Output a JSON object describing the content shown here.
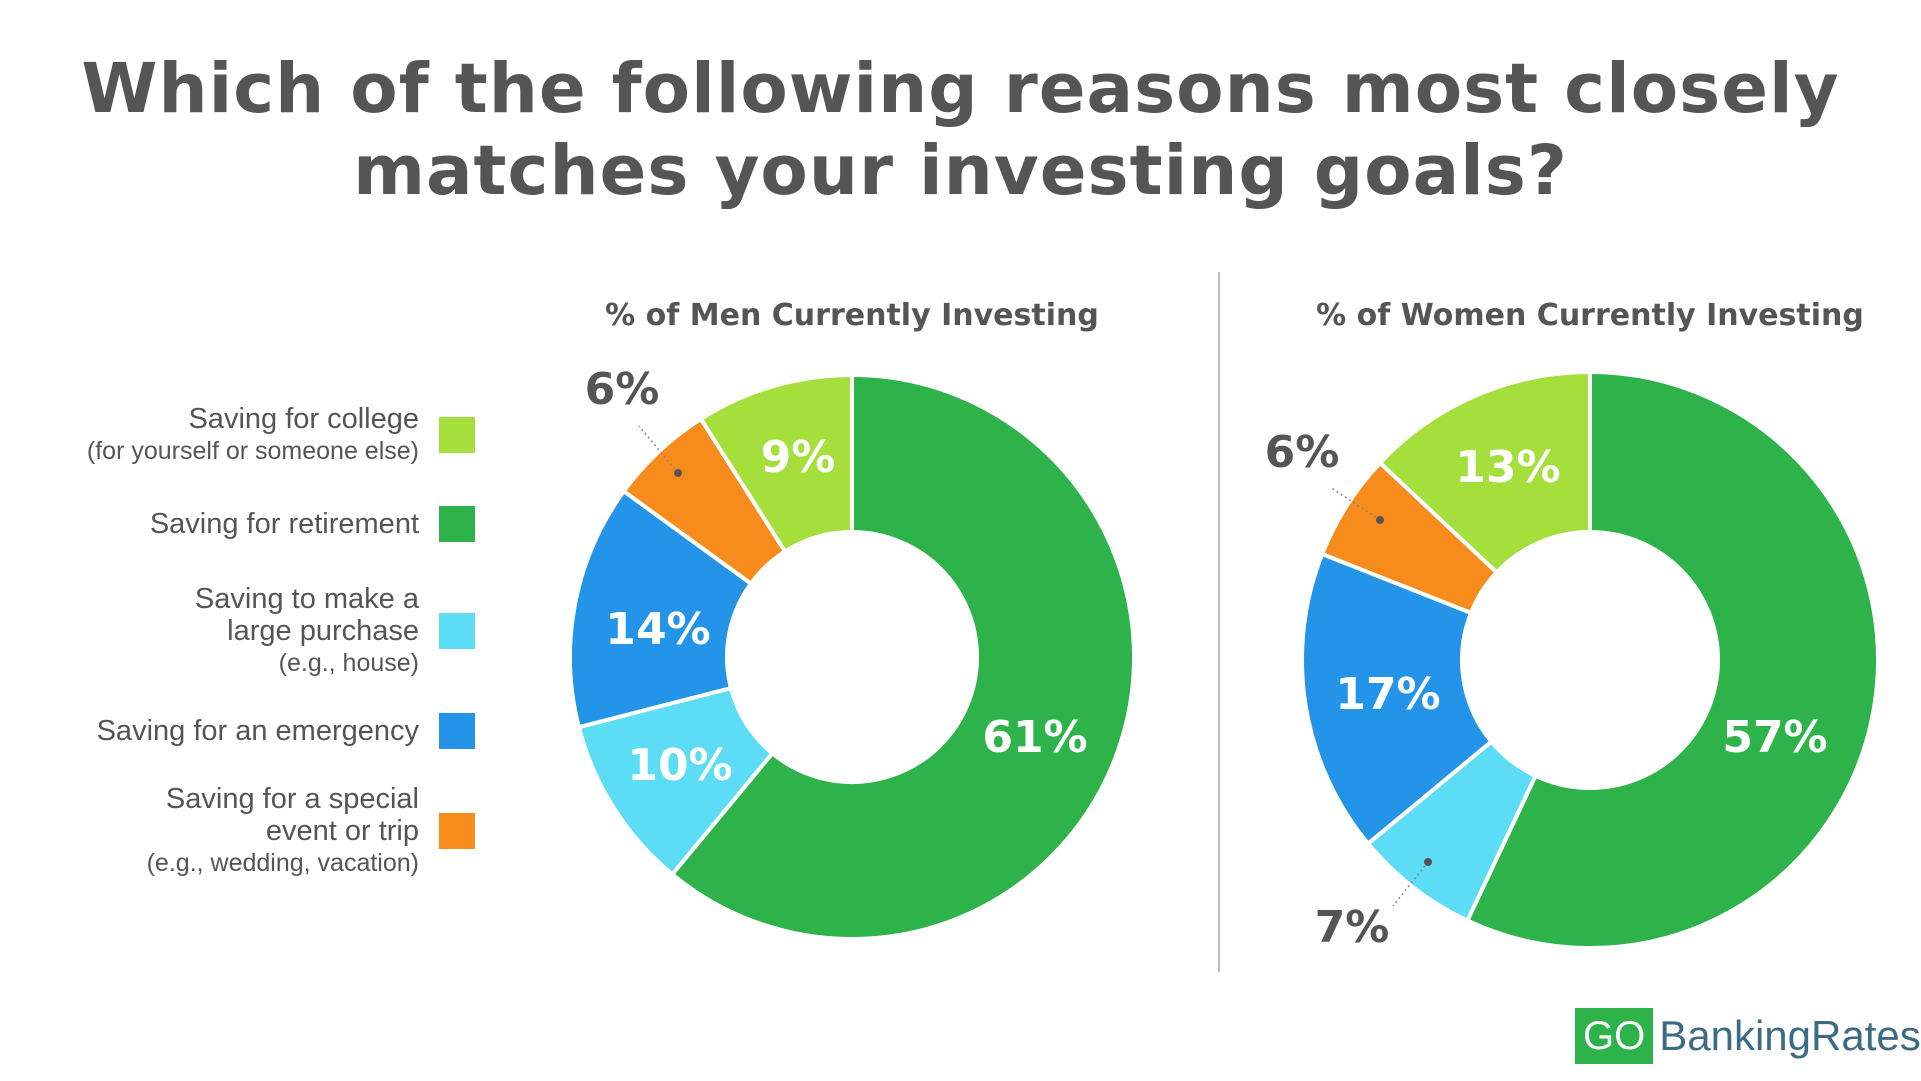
{
  "title": {
    "line1": "Which of the following reasons most closely",
    "line2": "matches your investing goals?"
  },
  "legend": [
    {
      "key": "college",
      "main": "Saving for college",
      "sub": "(for yourself or someone else)",
      "color": "#a5df3c"
    },
    {
      "key": "retirement",
      "main": "Saving for retirement",
      "sub": "",
      "color": "#2db34a"
    },
    {
      "key": "purchase",
      "main": "Saving to make a|large purchase",
      "sub": "(e.g., house)",
      "color": "#5ddcf5"
    },
    {
      "key": "emergency",
      "main": "Saving for an emergency",
      "sub": "",
      "color": "#2394e8"
    },
    {
      "key": "event",
      "main": "Saving for a special|event or trip",
      "sub": "(e.g., wedding, vacation)",
      "color": "#f78c1c"
    }
  ],
  "chart_data": [
    {
      "type": "pie",
      "title": "% of Men Currently Investing",
      "categories": [
        "Saving for retirement",
        "Saving to make a large purchase",
        "Saving for an emergency",
        "Saving for a special event or trip",
        "Saving for college"
      ],
      "values": [
        61,
        10,
        14,
        6,
        9
      ],
      "labels": [
        "61%",
        "10%",
        "14%",
        "6%",
        "9%"
      ],
      "colors": [
        "#2db34a",
        "#5ddcf5",
        "#2394e8",
        "#f78c1c",
        "#a5df3c"
      ]
    },
    {
      "type": "pie",
      "title": "% of Women Currently Investing",
      "categories": [
        "Saving for retirement",
        "Saving to make a large purchase",
        "Saving for an emergency",
        "Saving for a special event or trip",
        "Saving for college"
      ],
      "values": [
        57,
        7,
        17,
        6,
        13
      ],
      "labels": [
        "57%",
        "7%",
        "17%",
        "6%",
        "13%"
      ],
      "colors": [
        "#2db34a",
        "#5ddcf5",
        "#2394e8",
        "#f78c1c",
        "#a5df3c"
      ]
    }
  ],
  "logo": {
    "go": "GO",
    "rest": "BankingRates"
  }
}
